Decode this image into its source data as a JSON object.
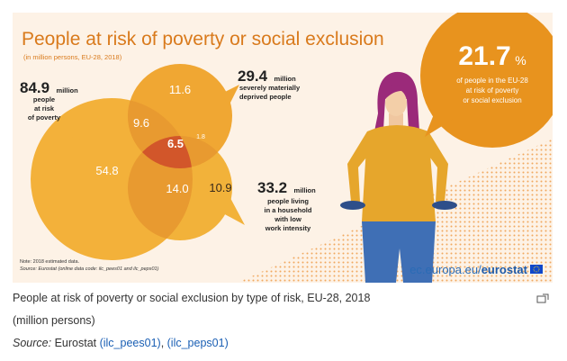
{
  "infographic": {
    "title": "People at risk of poverty or social exclusion",
    "subtitle": "(in million persons, EU-28, 2018)",
    "poverty": {
      "value": "84.9",
      "unit": "million",
      "label_lines": [
        "people",
        "at risk",
        "of poverty"
      ]
    },
    "deprived": {
      "value": "29.4",
      "unit": "million",
      "label_lines": [
        "severely materially",
        "deprived people"
      ]
    },
    "work_intensity": {
      "value": "33.2",
      "unit": "million",
      "label_lines": [
        "people living",
        "in a household",
        "with low",
        "work intensity"
      ]
    },
    "overlaps": {
      "poverty_only": "54.8",
      "deprived_only": "11.6",
      "work_only": "10.9",
      "poverty_deprived": "9.6",
      "poverty_work": "14.0",
      "deprived_work": "1.8",
      "all_three": "6.5"
    },
    "total": {
      "value": "21.7",
      "unit": "%",
      "label_lines": [
        "of people in the EU-28",
        "at risk of poverty",
        "or social exclusion"
      ]
    },
    "note": "Note: 2018 estimated data.",
    "source_note": "Source: Eurostat (online data code: ilc_pees01 and ilc_peps01)",
    "brand_domain": "ec.europa.eu/",
    "brand_name": "eurostat",
    "colors": {
      "background": "#fdf2e6",
      "poverty_circle": "#f3b13a",
      "deprived_circle": "#f0a733",
      "work_circle": "#f2b23a",
      "overlap": "#e89a30",
      "center": "#d2562a",
      "title": "#d97a1c",
      "bubble": "#e8931e",
      "brand_blue": "#0e47cb"
    }
  },
  "caption": {
    "title": "People at risk of poverty or social exclusion by type of risk, EU-28, 2018",
    "units": "(million persons)",
    "source_label": "Source:",
    "source_name": " Eurostat ",
    "link1": "(ilc_pees01)",
    "sep": ", ",
    "link2": "(ilc_peps01)"
  }
}
